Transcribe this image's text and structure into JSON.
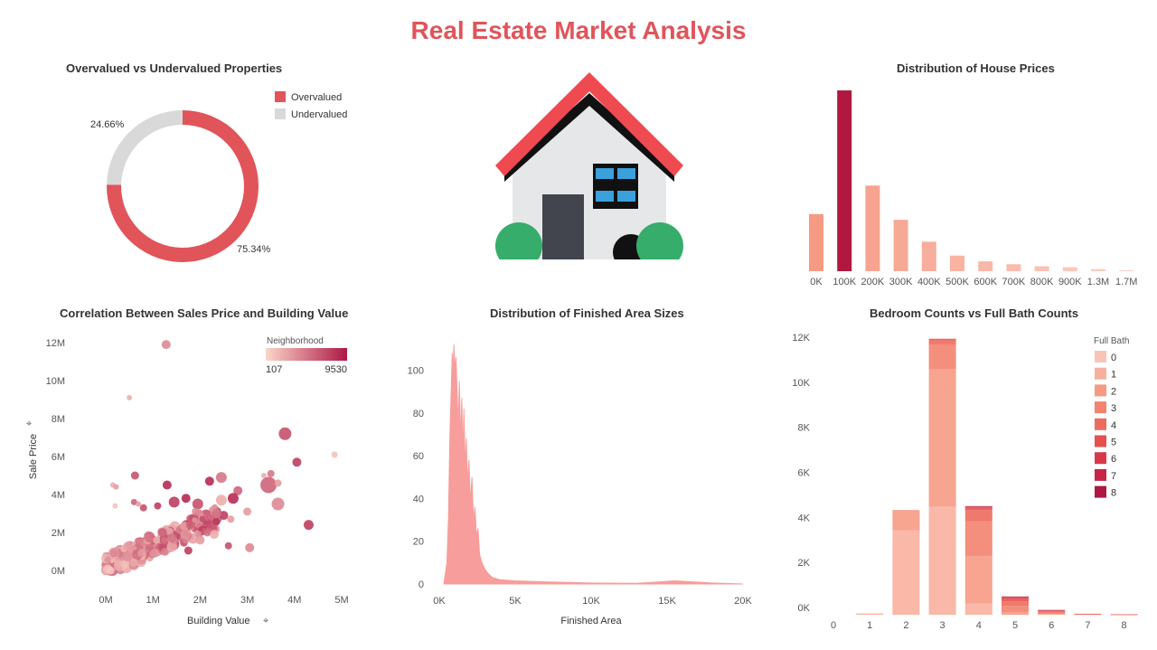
{
  "dashboard": {
    "title": "Real Estate Market Analysis"
  },
  "colors": {
    "overvalued": "#e0545a",
    "undervalued": "#d9d9d9",
    "accent": "#e0545a",
    "hist_highlight": "#b0183f",
    "hist_base": "#f59a83",
    "area": "#f79d9b",
    "house_roof": "#ef4a50",
    "house_wall": "#e6e7e8",
    "house_door": "#42454e",
    "house_window": "#3aa1dc",
    "house_bush": "#36ad6b"
  },
  "panels": {
    "donut": {
      "title": "Overvalued vs Undervalued Properties"
    },
    "house": {
      "icon": "house-icon"
    },
    "prices": {
      "title": "Distribution of House Prices"
    },
    "scatter": {
      "title": "Correlation Between Sales Price and Building Value"
    },
    "area": {
      "title": "Distribution of Finished Area Sizes"
    },
    "bedbath": {
      "title": "Bedroom Counts vs Full Bath Counts"
    }
  },
  "chart_data": [
    {
      "id": "donut",
      "type": "pie",
      "title": "Overvalued vs Undervalued Properties",
      "categories": [
        "Overvalued",
        "Undervalued"
      ],
      "values": [
        75.34,
        24.66
      ],
      "labels": [
        "75.34%",
        "24.66%"
      ],
      "legend": "top-right"
    },
    {
      "id": "prices",
      "type": "bar",
      "title": "Distribution of House Prices",
      "categories": [
        "0K",
        "100K",
        "200K",
        "300K",
        "400K",
        "500K",
        "600K",
        "700K",
        "800K",
        "900K",
        "1.3M",
        "1.7M"
      ],
      "values": [
        3000,
        9500,
        4500,
        2700,
        1550,
        820,
        520,
        370,
        260,
        210,
        110,
        50
      ],
      "highlight_index": 1
    },
    {
      "id": "scatter",
      "type": "scatter",
      "title": "Correlation Between Sales Price and Building Value",
      "xlabel": "Building Value",
      "ylabel": "Sale Price",
      "xlim": [
        0,
        5000000
      ],
      "ylim": [
        0,
        12000000
      ],
      "x_ticks": [
        "0M",
        "1M",
        "2M",
        "3M",
        "4M",
        "5M"
      ],
      "y_ticks": [
        "0M",
        "2M",
        "4M",
        "6M",
        "8M",
        "10M",
        "12M"
      ],
      "color_legend": {
        "title": "Neighborhood",
        "min": "107",
        "max": "9530"
      },
      "points": [
        {
          "x": 1280000,
          "y": 11900000,
          "c": 0.4,
          "s": 5
        },
        {
          "x": 500000,
          "y": 9100000,
          "c": 0.2,
          "s": 3
        },
        {
          "x": 4850000,
          "y": 6100000,
          "c": 0.1,
          "s": 3.5
        },
        {
          "x": 3800000,
          "y": 7200000,
          "c": 0.7,
          "s": 7
        },
        {
          "x": 4050000,
          "y": 5700000,
          "c": 0.8,
          "s": 5
        },
        {
          "x": 3450000,
          "y": 4500000,
          "c": 0.6,
          "s": 9
        },
        {
          "x": 3650000,
          "y": 4600000,
          "c": 0.3,
          "s": 4
        },
        {
          "x": 3500000,
          "y": 5100000,
          "c": 0.5,
          "s": 4
        },
        {
          "x": 3350000,
          "y": 5000000,
          "c": 0.2,
          "s": 3
        },
        {
          "x": 4300000,
          "y": 2400000,
          "c": 0.8,
          "s": 5.5
        },
        {
          "x": 3650000,
          "y": 3500000,
          "c": 0.4,
          "s": 7
        },
        {
          "x": 3000000,
          "y": 3100000,
          "c": 0.3,
          "s": 4.5
        },
        {
          "x": 3050000,
          "y": 1200000,
          "c": 0.4,
          "s": 5
        },
        {
          "x": 2450000,
          "y": 4900000,
          "c": 0.5,
          "s": 6
        },
        {
          "x": 2200000,
          "y": 4700000,
          "c": 0.9,
          "s": 5
        },
        {
          "x": 2800000,
          "y": 4200000,
          "c": 0.6,
          "s": 5
        },
        {
          "x": 2700000,
          "y": 3800000,
          "c": 0.9,
          "s": 6
        },
        {
          "x": 2450000,
          "y": 3700000,
          "c": 0.2,
          "s": 6
        },
        {
          "x": 1300000,
          "y": 4500000,
          "c": 0.9,
          "s": 5
        },
        {
          "x": 1450000,
          "y": 3600000,
          "c": 0.8,
          "s": 6
        },
        {
          "x": 1700000,
          "y": 3800000,
          "c": 0.9,
          "s": 5
        },
        {
          "x": 1950000,
          "y": 3500000,
          "c": 0.7,
          "s": 6
        },
        {
          "x": 2500000,
          "y": 2900000,
          "c": 0.8,
          "s": 5
        },
        {
          "x": 2650000,
          "y": 2700000,
          "c": 0.3,
          "s": 4
        },
        {
          "x": 2350000,
          "y": 3000000,
          "c": 0.5,
          "s": 5
        },
        {
          "x": 1900000,
          "y": 3100000,
          "c": 0.4,
          "s": 4
        },
        {
          "x": 2150000,
          "y": 3000000,
          "c": 0.6,
          "s": 4
        },
        {
          "x": 1100000,
          "y": 3400000,
          "c": 0.8,
          "s": 4
        },
        {
          "x": 620000,
          "y": 5000000,
          "c": 0.7,
          "s": 4.5
        },
        {
          "x": 600000,
          "y": 3600000,
          "c": 0.6,
          "s": 3.5
        },
        {
          "x": 690000,
          "y": 3500000,
          "c": 0.3,
          "s": 3
        },
        {
          "x": 150000,
          "y": 4500000,
          "c": 0.2,
          "s": 3
        },
        {
          "x": 220000,
          "y": 4400000,
          "c": 0.3,
          "s": 3
        },
        {
          "x": 200000,
          "y": 3400000,
          "c": 0.1,
          "s": 3
        },
        {
          "x": 800000,
          "y": 3300000,
          "c": 0.7,
          "s": 4
        },
        {
          "x": 1750000,
          "y": 1050000,
          "c": 0.8,
          "s": 4.5
        },
        {
          "x": 1400000,
          "y": 1700000,
          "c": 0.5,
          "s": 5
        },
        {
          "x": 1200000,
          "y": 2000000,
          "c": 0.6,
          "s": 5
        },
        {
          "x": 2600000,
          "y": 1300000,
          "c": 0.7,
          "s": 4
        },
        {
          "x": 2000000,
          "y": 1600000,
          "c": 0.3,
          "s": 5
        },
        {
          "x": 2300000,
          "y": 1900000,
          "c": 0.2,
          "s": 5
        }
      ],
      "cluster": {
        "x_range": [
          0,
          2400000
        ],
        "y_slope": 1.1,
        "count": 320
      }
    },
    {
      "id": "area",
      "type": "area",
      "title": "Distribution of Finished Area Sizes",
      "xlabel": "Finished Area",
      "xlim": [
        0,
        20000
      ],
      "ylim": [
        0,
        115
      ],
      "x_ticks": [
        "0K",
        "5K",
        "10K",
        "15K",
        "20K"
      ],
      "y_ticks": [
        "0",
        "20",
        "40",
        "60",
        "80",
        "100"
      ],
      "points": [
        [
          300,
          0
        ],
        [
          500,
          10
        ],
        [
          600,
          30
        ],
        [
          700,
          70
        ],
        [
          780,
          90
        ],
        [
          850,
          108
        ],
        [
          900,
          97
        ],
        [
          960,
          112
        ],
        [
          1030,
          100
        ],
        [
          1100,
          106
        ],
        [
          1180,
          88
        ],
        [
          1250,
          75
        ],
        [
          1320,
          95
        ],
        [
          1400,
          67
        ],
        [
          1480,
          87
        ],
        [
          1550,
          60
        ],
        [
          1620,
          82
        ],
        [
          1700,
          55
        ],
        [
          1780,
          68
        ],
        [
          1850,
          47
        ],
        [
          1950,
          58
        ],
        [
          2050,
          38
        ],
        [
          2150,
          50
        ],
        [
          2250,
          30
        ],
        [
          2350,
          36
        ],
        [
          2450,
          22
        ],
        [
          2550,
          26
        ],
        [
          2650,
          14
        ],
        [
          2800,
          10
        ],
        [
          3000,
          7
        ],
        [
          3200,
          5
        ],
        [
          3500,
          3
        ],
        [
          4000,
          2
        ],
        [
          5000,
          1.5
        ],
        [
          7000,
          1
        ],
        [
          10000,
          0.5
        ],
        [
          13000,
          0.3
        ],
        [
          15500,
          1.5
        ],
        [
          18000,
          0.5
        ],
        [
          20000,
          0
        ]
      ]
    },
    {
      "id": "bedbath",
      "type": "bar",
      "stacked": true,
      "title": "Bedroom Counts vs Full Bath Counts",
      "categories": [
        "0",
        "1",
        "2",
        "3",
        "4",
        "5",
        "6",
        "7",
        "8"
      ],
      "y_ticks": [
        "0K",
        "2K",
        "4K",
        "6K",
        "8K",
        "10K",
        "12K"
      ],
      "ylim": [
        0,
        12400
      ],
      "legend": "top-right",
      "legend_title": "Full Bath",
      "series": [
        {
          "name": "0",
          "color": "#f9c4b8",
          "values": [
            0,
            0,
            0,
            0,
            0,
            0,
            0,
            0,
            0
          ]
        },
        {
          "name": "1",
          "color": "#f8b09e",
          "values": [
            0,
            60,
            3750,
            4800,
            500,
            0,
            0,
            0,
            0
          ]
        },
        {
          "name": "2",
          "color": "#f69a84",
          "values": [
            0,
            0,
            900,
            6100,
            2100,
            120,
            30,
            10,
            5
          ]
        },
        {
          "name": "3",
          "color": "#f3826f",
          "values": [
            0,
            0,
            0,
            1100,
            1550,
            270,
            70,
            15,
            5
          ]
        },
        {
          "name": "4",
          "color": "#ee6a5d",
          "values": [
            0,
            0,
            0,
            200,
            500,
            200,
            70,
            10,
            5
          ]
        },
        {
          "name": "5",
          "color": "#e6504f",
          "values": [
            0,
            0,
            0,
            50,
            100,
            150,
            20,
            10,
            5
          ]
        },
        {
          "name": "6",
          "color": "#d9384a",
          "values": [
            0,
            0,
            0,
            0,
            40,
            40,
            10,
            0,
            0
          ]
        },
        {
          "name": "7",
          "color": "#c72446",
          "values": [
            0,
            0,
            0,
            0,
            20,
            20,
            5,
            0,
            0
          ]
        },
        {
          "name": "8",
          "color": "#ae1842",
          "values": [
            0,
            0,
            0,
            0,
            10,
            10,
            5,
            0,
            0
          ]
        }
      ]
    }
  ]
}
